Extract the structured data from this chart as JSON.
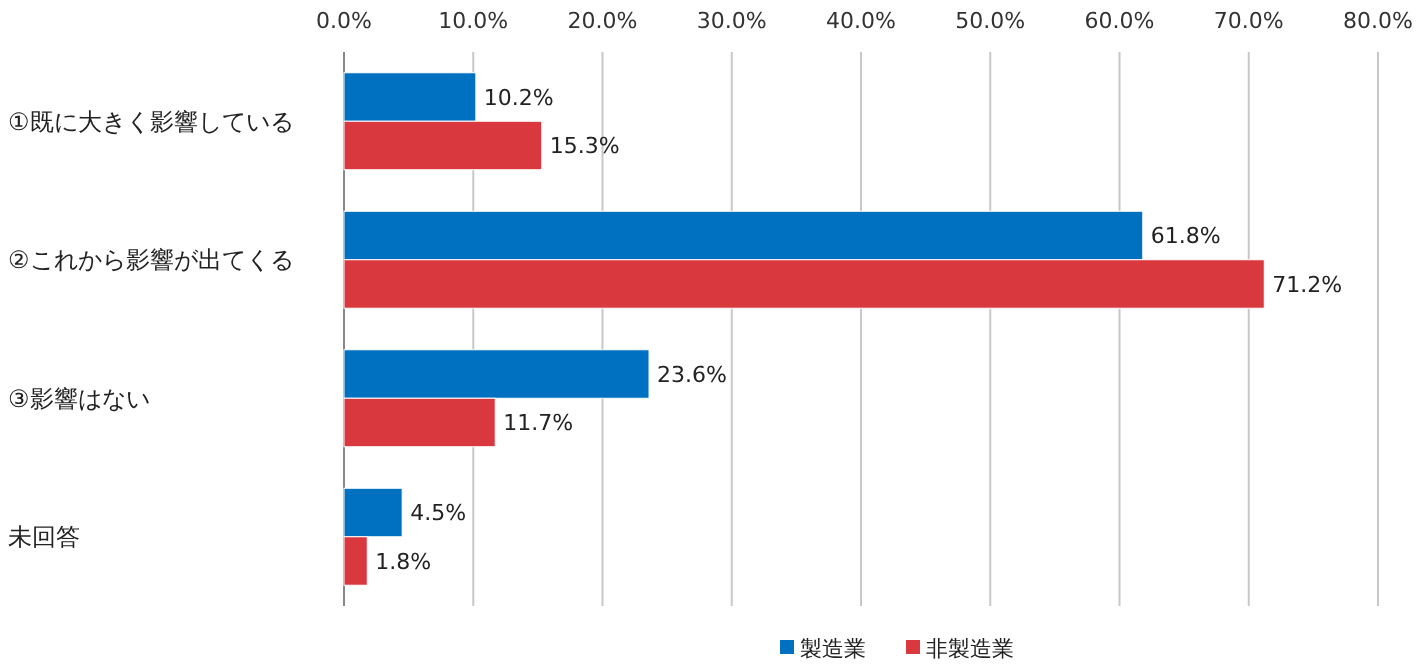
{
  "chart_data": {
    "type": "bar",
    "orientation": "horizontal",
    "categories": [
      "①既に大きく影響している",
      "②これから影響が出てくる",
      "③影響はない",
      "未回答"
    ],
    "series": [
      {
        "name": "製造業",
        "color": "#0070c0",
        "values": [
          10.2,
          61.8,
          23.6,
          4.5
        ],
        "value_labels": [
          "10.2%",
          "61.8%",
          "23.6%",
          "4.5%"
        ]
      },
      {
        "name": "非製造業",
        "color": "#d9383f",
        "values": [
          15.3,
          71.2,
          11.7,
          1.8
        ],
        "value_labels": [
          "15.3%",
          "71.2%",
          "11.7%",
          "1.8%"
        ]
      }
    ],
    "xlim": [
      0,
      80
    ],
    "xticks": [
      {
        "value": 0,
        "label": "0.0%"
      },
      {
        "value": 10,
        "label": "10.0%"
      },
      {
        "value": 20,
        "label": "20.0%"
      },
      {
        "value": 30,
        "label": "30.0%"
      },
      {
        "value": 40,
        "label": "40.0%"
      },
      {
        "value": 50,
        "label": "50.0%"
      },
      {
        "value": 60,
        "label": "60.0%"
      },
      {
        "value": 70,
        "label": "70.0%"
      },
      {
        "value": 80,
        "label": "80.0%"
      }
    ],
    "grid": "x",
    "legend": "bottom"
  }
}
